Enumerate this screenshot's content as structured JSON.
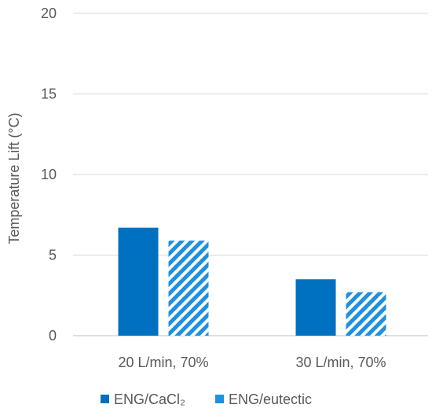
{
  "chart_data": {
    "type": "bar",
    "categories": [
      "20 L/min, 70%",
      "30 L/min, 70%"
    ],
    "series": [
      {
        "name": "ENG/CaCl₂",
        "values": [
          6.7,
          3.5
        ],
        "color": "#0070C0",
        "pattern": "solid"
      },
      {
        "name": "ENG/eutectic",
        "values": [
          5.9,
          2.7
        ],
        "color": "#1E90E0",
        "pattern": "diagonal-stripes"
      }
    ],
    "ylabel": "Temperature Lift (°C)",
    "xlabel": "",
    "ylim": [
      0,
      20
    ],
    "yticks": [
      0,
      5,
      10,
      15,
      20
    ],
    "grid": true,
    "legend_position": "bottom"
  }
}
